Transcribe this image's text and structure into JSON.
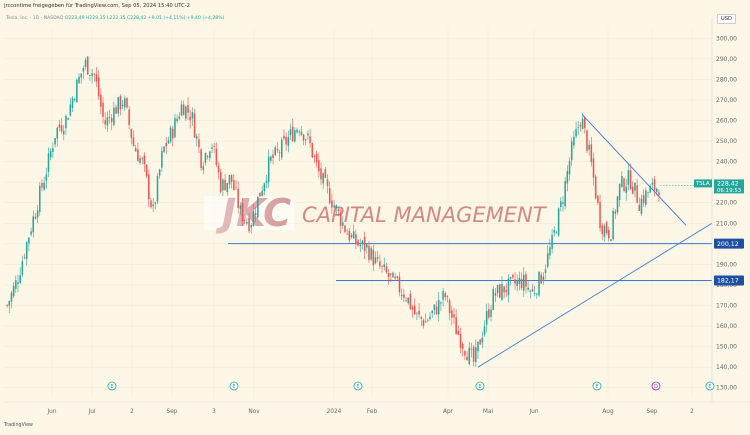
{
  "header": {
    "title": "jrccontime freigegeben für TradingView.com, Sep 05, 2024 15:40 UTC-2",
    "symbol_line": "Tesla, Inc. · 1D · NASDAQ",
    "ohlc": "O223,49 H229,35 L222,35 C228,42 +9,01 (+4,11%) +9,40 (+4,28%)",
    "currency": "USD"
  },
  "watermark": {
    "logo": "JKC",
    "text": "CAPITAL MANAGEMENT"
  },
  "footer": "TradingView",
  "colors": {
    "up": "#26a69a",
    "down": "#ef5350",
    "line": "#3f78d6",
    "badge_ticker": "#26a69a",
    "badge_level": "#1f4fa0",
    "watermark": "#c94b4b"
  },
  "chart_data": {
    "type": "candlestick",
    "ticker": "TSLA",
    "last_price": "228,42",
    "countdown": "06:19:53",
    "ylim": [
      125,
      305
    ],
    "y_ticks": [
      "300,00",
      "290,00",
      "280,00",
      "270,00",
      "260,00",
      "250,00",
      "240,00",
      "230,00",
      "220,00",
      "210,00",
      "200,00",
      "190,00",
      "180,00",
      "170,00",
      "160,00",
      "150,00",
      "140,00",
      "130,00"
    ],
    "x_ticks": [
      "Jun",
      "Jul",
      "2",
      "Sep",
      "3",
      "Nov",
      "2024",
      "Feb",
      "Apr",
      "Mai",
      "Jun",
      "Aug",
      "Sep",
      "2"
    ],
    "horizontal_levels": [
      {
        "value": 200.12,
        "label": "200,12"
      },
      {
        "value": 182.17,
        "label": "182,17"
      }
    ],
    "trendlines": [
      {
        "name": "support",
        "from": [
          112,
          140
        ],
        "to": [
          166,
          210
        ]
      },
      {
        "name": "resistance",
        "from": [
          134,
          263
        ],
        "to": [
          162,
          210
        ]
      }
    ],
    "event_markers": [
      "E",
      "E",
      "E",
      "E",
      "E",
      "D",
      "E"
    ],
    "close_path": [
      170,
      182,
      200,
      218,
      235,
      255,
      260,
      275,
      288,
      282,
      258,
      265,
      270,
      248,
      238,
      215,
      245,
      255,
      268,
      262,
      240,
      250,
      228,
      232,
      215,
      210,
      225,
      240,
      245,
      252,
      258,
      250,
      235,
      225,
      215,
      205,
      200,
      198,
      190,
      185,
      180,
      175,
      165,
      162,
      168,
      175,
      160,
      150,
      142,
      160,
      175,
      178,
      180,
      182,
      176,
      185,
      200,
      220,
      245,
      262,
      240,
      210,
      205,
      228,
      232,
      220,
      226,
      228
    ]
  }
}
